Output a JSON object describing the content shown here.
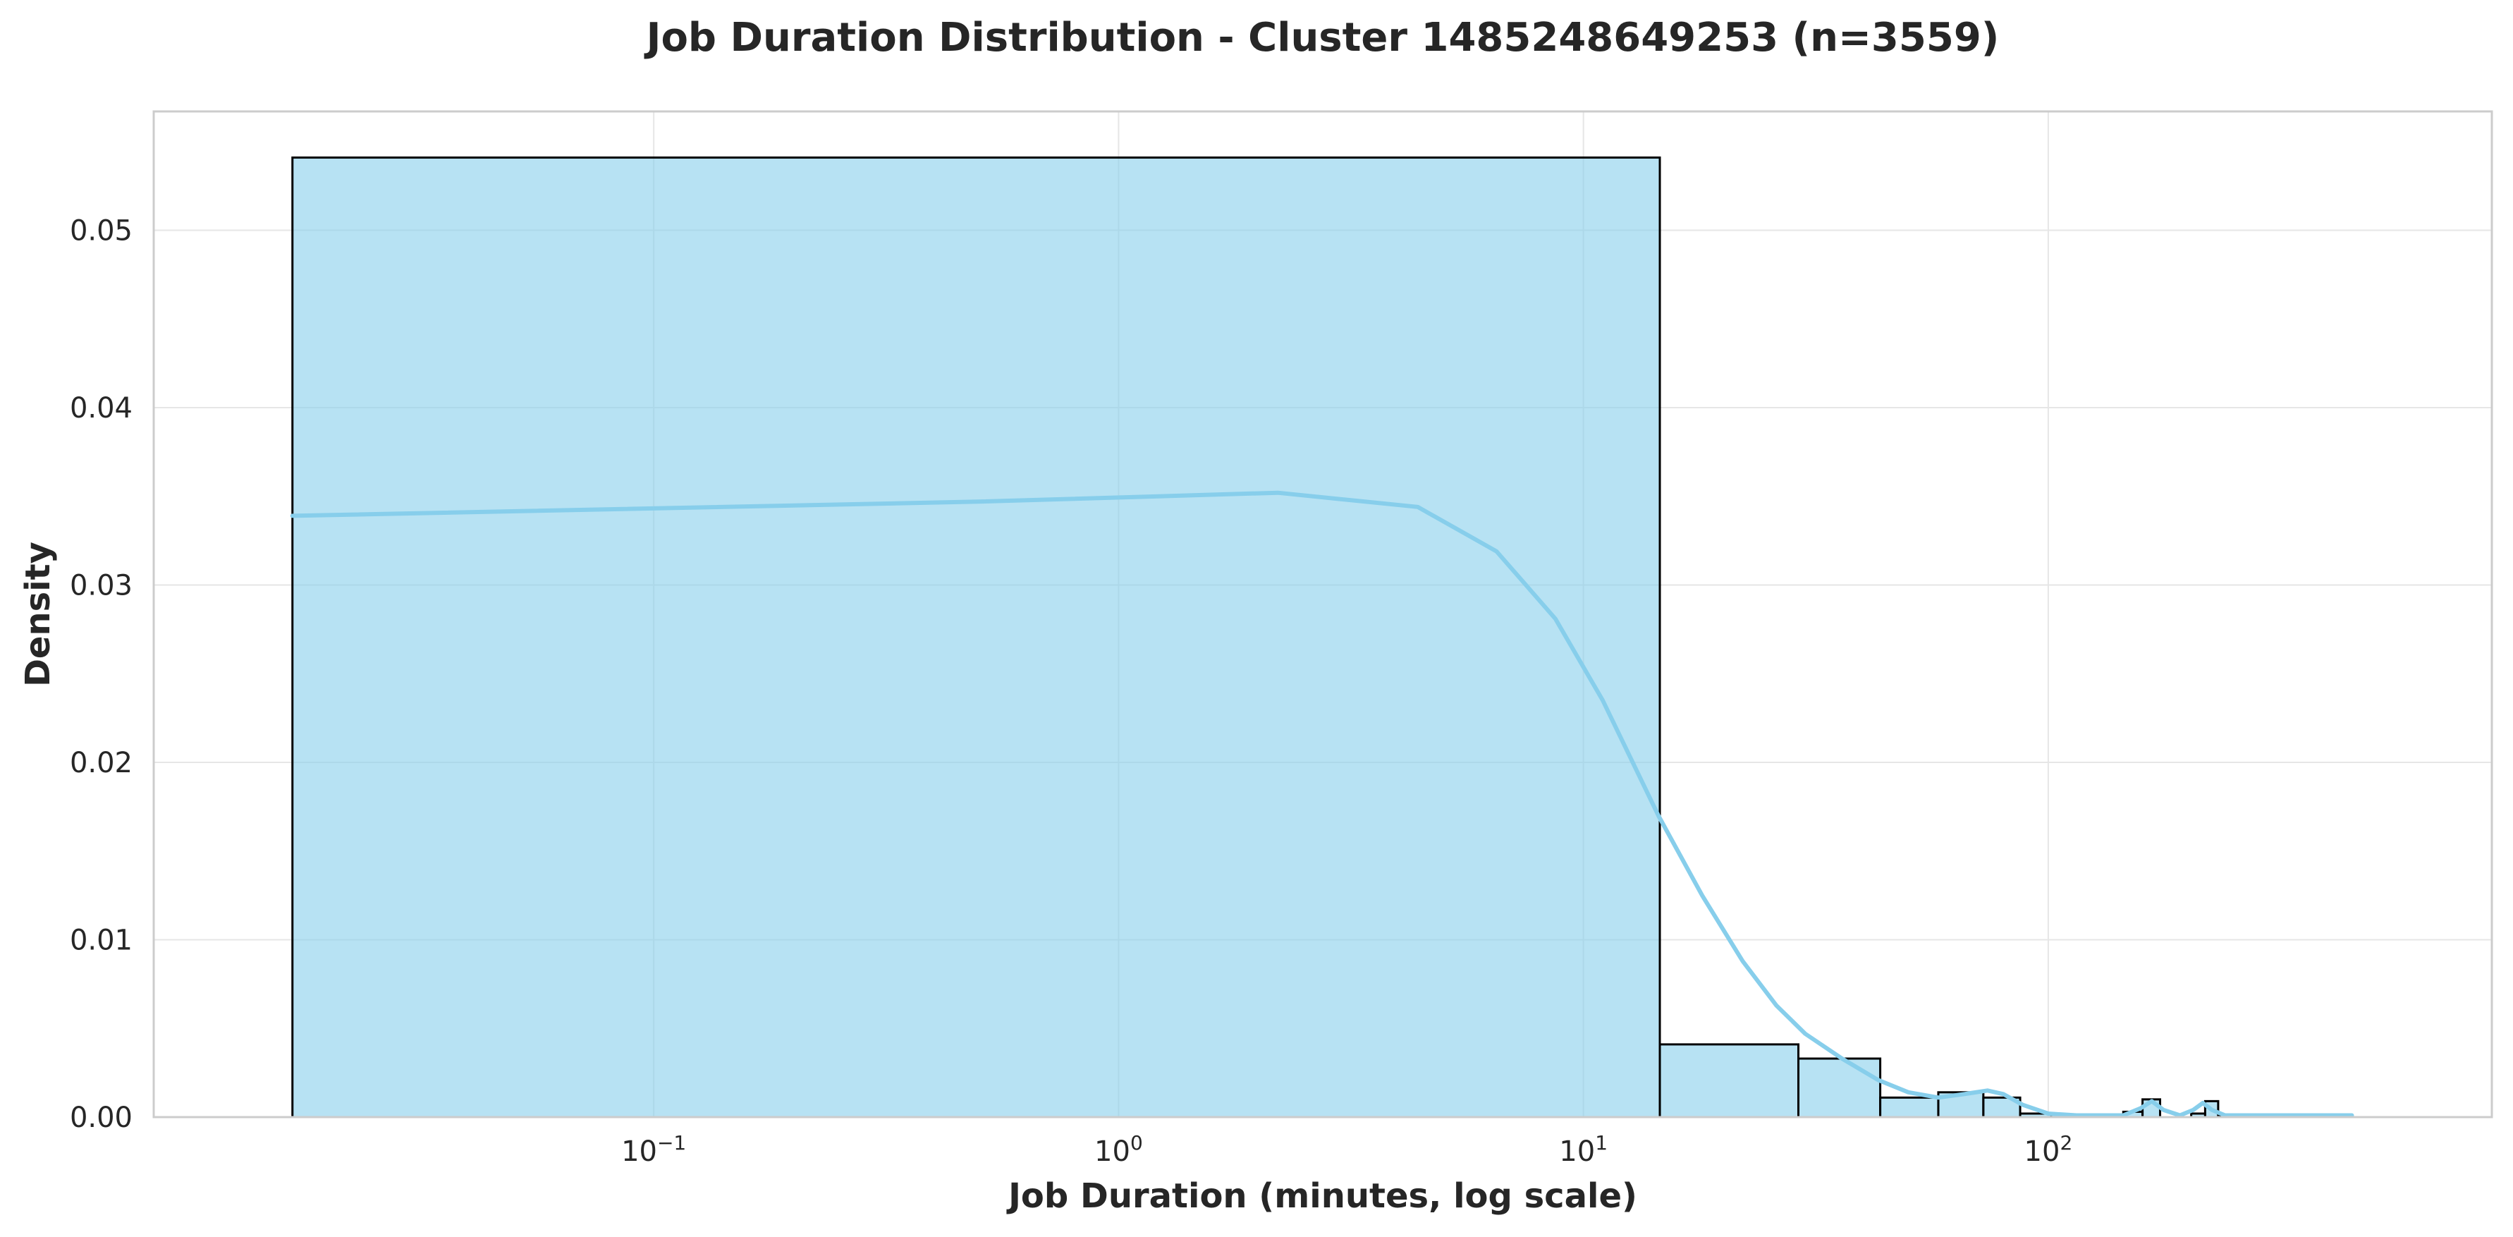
{
  "chart_data": {
    "type": "bar",
    "title": "Job Duration Distribution - Cluster 1485248649253 (n=3559)",
    "xlabel": "Job Duration (minutes, log scale)",
    "ylabel": "Density",
    "xscale": "log",
    "xlim": [
      0.0084,
      900
    ],
    "ylim": [
      0,
      0.0567
    ],
    "grid": true,
    "x_ticks": [
      {
        "value": 0.1,
        "base": "10",
        "exp": "−1"
      },
      {
        "value": 1,
        "base": "10",
        "exp": "0"
      },
      {
        "value": 10,
        "base": "10",
        "exp": "1"
      },
      {
        "value": 100,
        "base": "10",
        "exp": "2"
      }
    ],
    "y_ticks": [
      {
        "value": 0.0,
        "label": "0.00"
      },
      {
        "value": 0.01,
        "label": "0.01"
      },
      {
        "value": 0.02,
        "label": "0.02"
      },
      {
        "value": 0.03,
        "label": "0.03"
      },
      {
        "value": 0.04,
        "label": "0.04"
      },
      {
        "value": 0.05,
        "label": "0.05"
      }
    ],
    "bins": [
      {
        "x0": 0.0167,
        "x1": 14.6,
        "density": 0.0541
      },
      {
        "x0": 14.6,
        "x1": 29.0,
        "density": 0.0041
      },
      {
        "x0": 29.0,
        "x1": 43.5,
        "density": 0.0033
      },
      {
        "x0": 43.5,
        "x1": 58.0,
        "density": 0.0011
      },
      {
        "x0": 58.0,
        "x1": 72.5,
        "density": 0.0014
      },
      {
        "x0": 72.5,
        "x1": 87.0,
        "density": 0.0011
      },
      {
        "x0": 87.0,
        "x1": 101.5,
        "density": 0.0002
      },
      {
        "x0": 101.5,
        "x1": 116.0,
        "density": 0.0
      },
      {
        "x0": 116.0,
        "x1": 130.5,
        "density": 0.0
      },
      {
        "x0": 130.5,
        "x1": 145.0,
        "density": 0.0
      },
      {
        "x0": 145.0,
        "x1": 159.5,
        "density": 0.0003
      },
      {
        "x0": 159.5,
        "x1": 174.0,
        "density": 0.001
      },
      {
        "x0": 174.0,
        "x1": 188.5,
        "density": 0.0
      },
      {
        "x0": 188.5,
        "x1": 203.0,
        "density": 0.0
      },
      {
        "x0": 203.0,
        "x1": 217.5,
        "density": 0.0002
      },
      {
        "x0": 217.5,
        "x1": 232.0,
        "density": 0.0009
      },
      {
        "x0": 232.0,
        "x1": 246.5,
        "density": 0.0001
      },
      {
        "x0": 246.5,
        "x1": 261.0,
        "density": 0.0
      }
    ],
    "kde": {
      "x": [
        0.0167,
        0.5,
        2.2,
        4.4,
        6.5,
        8.7,
        11.0,
        14.5,
        18.0,
        22.0,
        26.0,
        30.0,
        36.0,
        43.0,
        50.0,
        58.0,
        66.0,
        74.0,
        80.0,
        88.0,
        100.0,
        115.0,
        130.0,
        145.0,
        158.0,
        167.0,
        177.0,
        192.0,
        205.0,
        215.0,
        225.0,
        240.0,
        280.0,
        450.0
      ],
      "y": [
        0.0339,
        0.0347,
        0.0352,
        0.0344,
        0.0319,
        0.0281,
        0.0235,
        0.017,
        0.0125,
        0.0088,
        0.0063,
        0.0047,
        0.0033,
        0.0021,
        0.0014,
        0.0011,
        0.0013,
        0.0015,
        0.0013,
        0.0007,
        0.0002,
        0.0001,
        0.0001,
        0.0001,
        0.0005,
        0.0009,
        0.0004,
        0.0001,
        0.0004,
        0.0008,
        0.0004,
        0.0001,
        0.0001,
        0.0001
      ]
    },
    "colors": {
      "bar_fill": "#87CEEB",
      "bar_fill_opacity": 0.6,
      "bar_edge": "#000000",
      "kde_line": "#87CEEB",
      "grid": "#e6e6e6",
      "axes_edge": "#cccccc"
    }
  }
}
